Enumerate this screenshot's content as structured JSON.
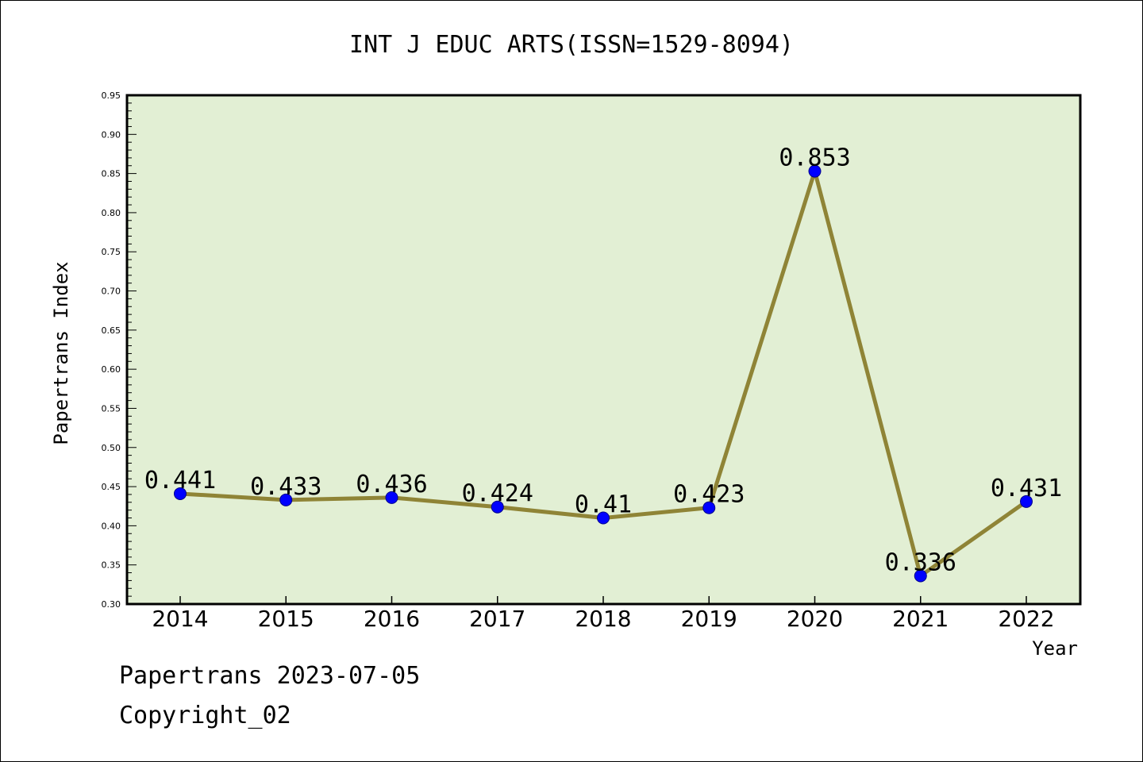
{
  "chart_data": {
    "type": "line",
    "title": "INT J EDUC ARTS(ISSN=1529-8094)",
    "xlabel": "Year",
    "ylabel": "Papertrans Index",
    "categories": [
      "2014",
      "2015",
      "2016",
      "2017",
      "2018",
      "2019",
      "2020",
      "2021",
      "2022"
    ],
    "series": [
      {
        "values": [
          0.441,
          0.433,
          0.436,
          0.424,
          0.41,
          0.423,
          0.853,
          0.336,
          0.431
        ],
        "data_labels": [
          "0.441",
          "0.433",
          "0.436",
          "0.424",
          "0.41",
          "0.423",
          "0.853",
          "0.336",
          "0.431"
        ]
      }
    ],
    "ylim": [
      0.3,
      0.95
    ],
    "yticks": [
      "0.30",
      "0.35",
      "0.40",
      "0.45",
      "0.50",
      "0.55",
      "0.60",
      "0.65",
      "0.70",
      "0.75",
      "0.80",
      "0.85",
      "0.90",
      "0.95"
    ],
    "grid": false,
    "legend": "none",
    "colors": {
      "plot_background": "#e2efd4",
      "line": "#8f8436",
      "marker": "#0000ff",
      "marker_edge": "#00008b"
    }
  },
  "footer": {
    "line1": "Papertrans 2023-07-05",
    "line2": "Copyright_02"
  }
}
